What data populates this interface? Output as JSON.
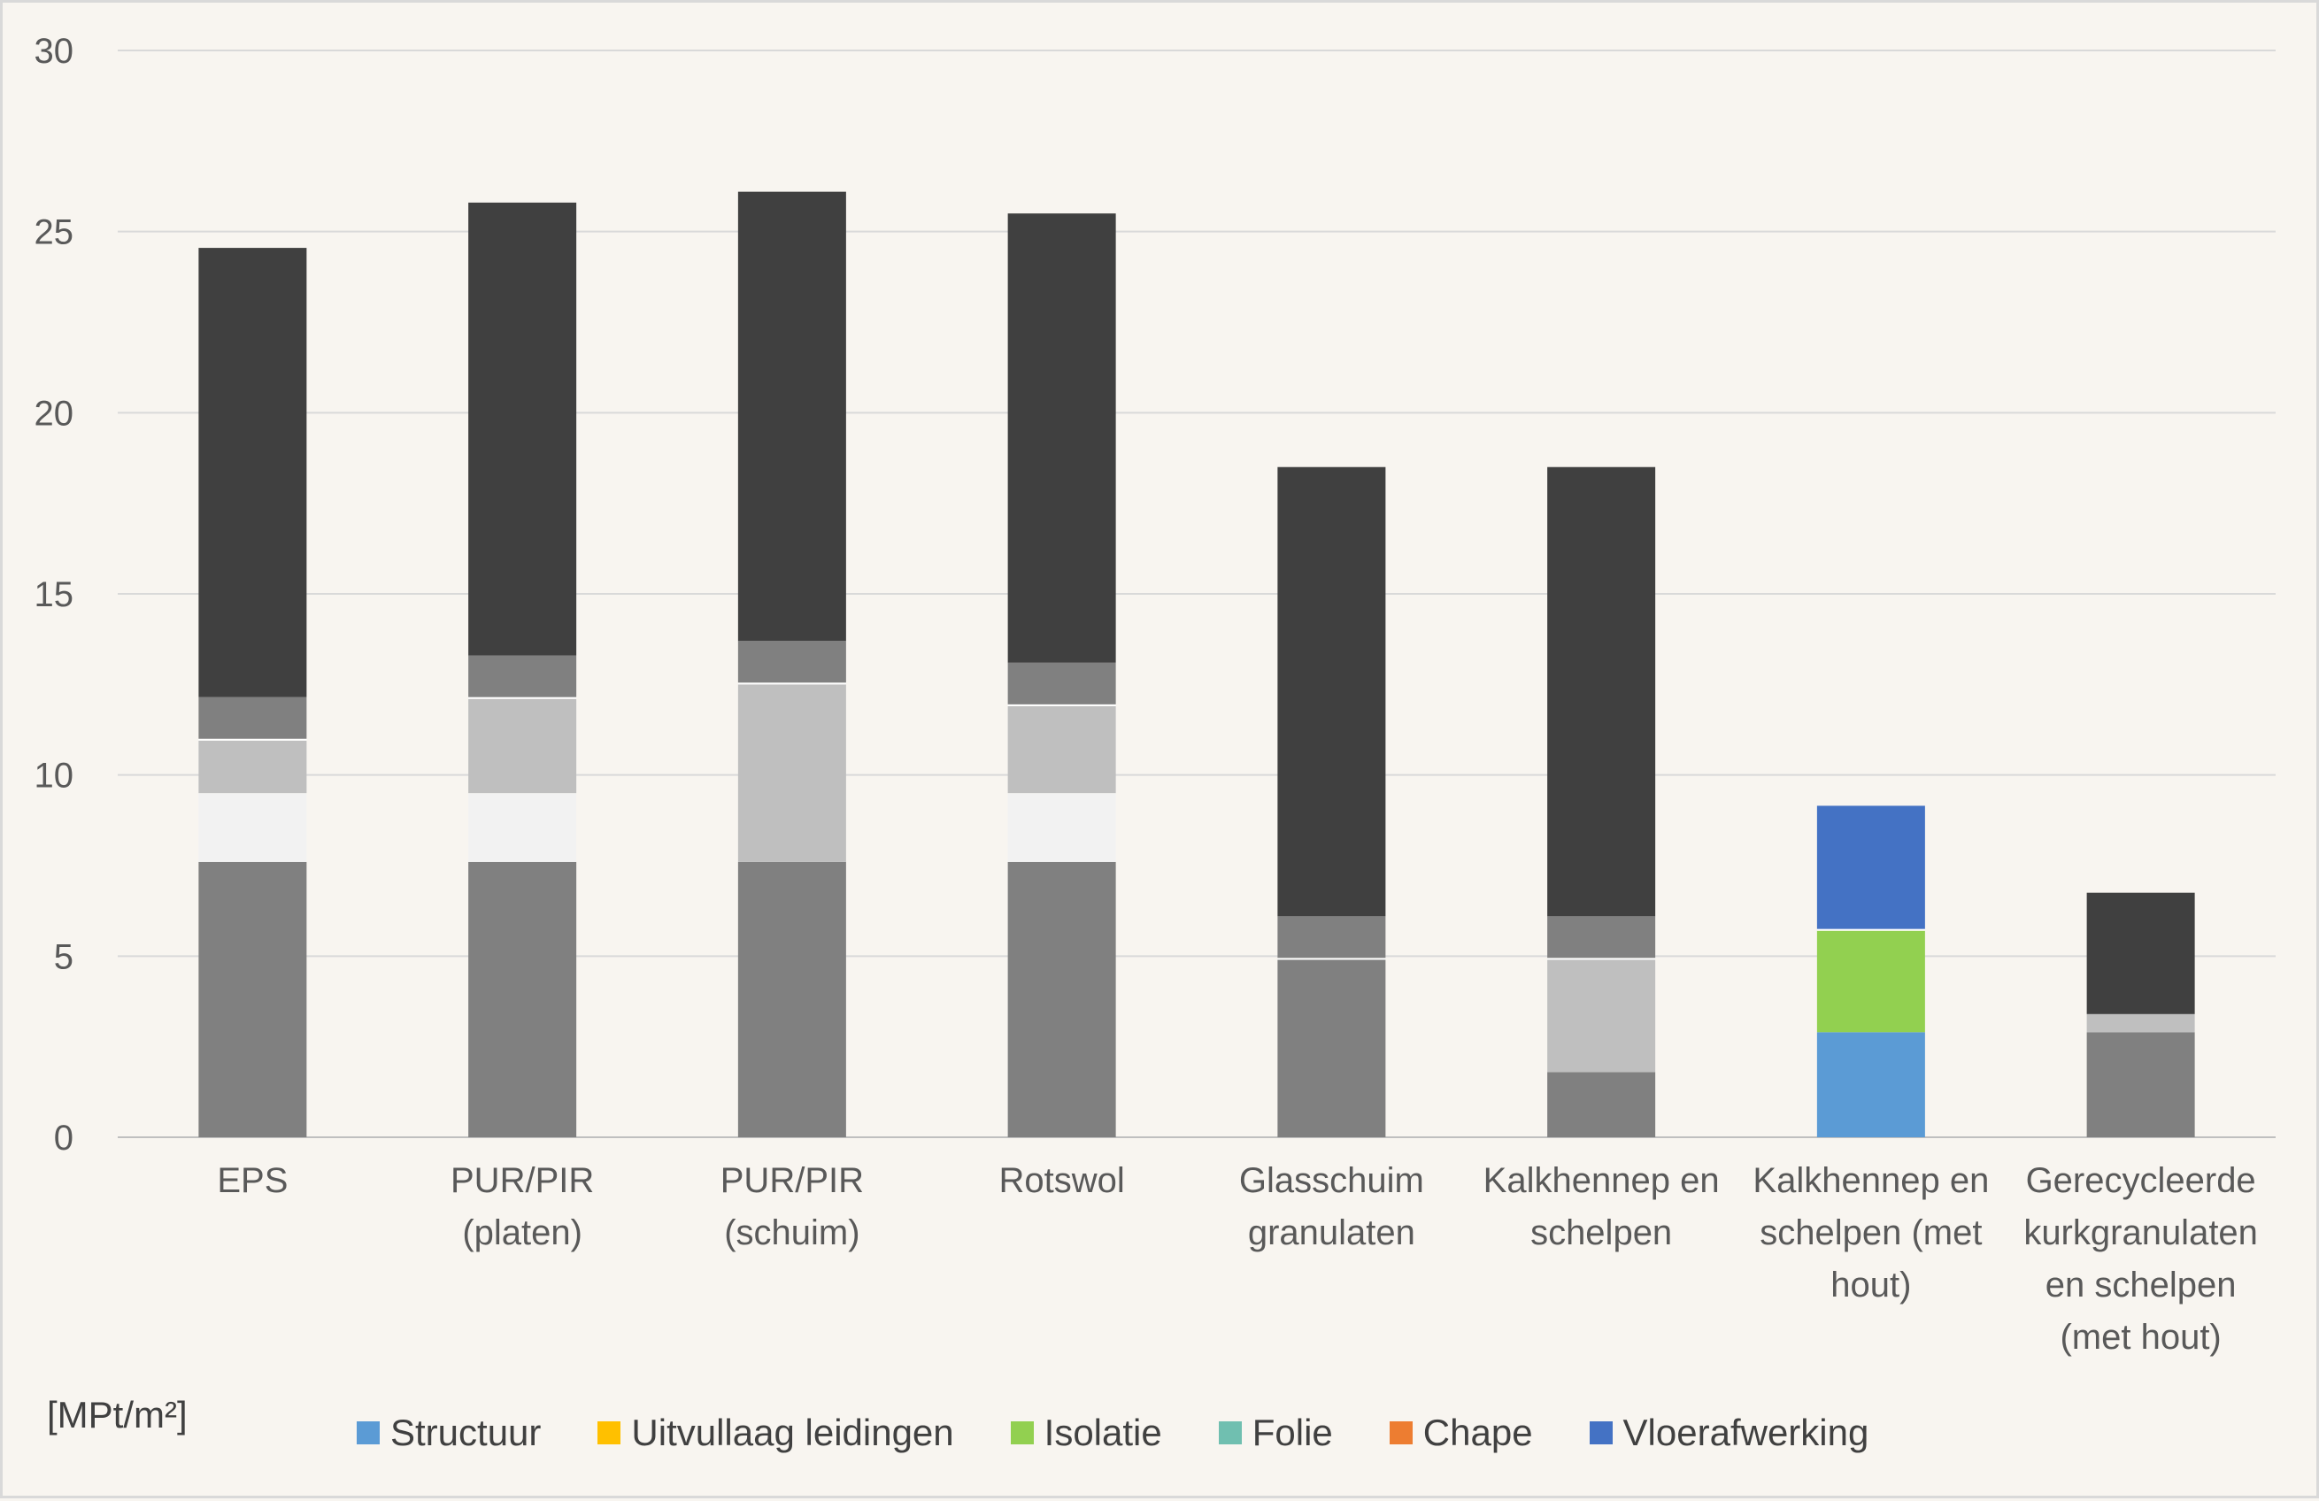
{
  "chart_data": {
    "type": "bar",
    "stacked": true,
    "ylim": [
      0,
      30
    ],
    "yticks": [
      0,
      5,
      10,
      15,
      20,
      25,
      30
    ],
    "unit_label": "[MPt/m²]",
    "grid": true,
    "legend_position": "bottom",
    "categories": [
      "EPS",
      "PUR/PIR (platen)",
      "PUR/PIR (schuim)",
      "Rotswol",
      "Glasschuim granulaten",
      "Kalkhennep en schelpen",
      "Kalkhennep en schelpen (met hout)",
      "Gerecycleerde kurkgranulaten en schelpen (met hout)"
    ],
    "category_lines": [
      [
        "EPS"
      ],
      [
        "PUR/PIR",
        "(platen)"
      ],
      [
        "PUR/PIR",
        "(schuim)"
      ],
      [
        "Rotswol"
      ],
      [
        "Glasschuim",
        "granulaten"
      ],
      [
        "Kalkhennep en",
        "schelpen"
      ],
      [
        "Kalkhennep en",
        "schelpen (met",
        "hout)"
      ],
      [
        "Gerecycleerde",
        "kurkgranulaten",
        "en schelpen",
        "(met hout)"
      ]
    ],
    "series": [
      {
        "name": "Structuur",
        "color": "#5b9bd5",
        "values": [
          7.6,
          7.6,
          7.6,
          7.6,
          4.9,
          1.8,
          2.9,
          2.9
        ]
      },
      {
        "name": "Uitvullaag leidingen",
        "color": "#ffc000",
        "values": [
          1.9,
          1.9,
          0,
          1.9,
          0,
          0,
          0,
          0
        ]
      },
      {
        "name": "Isolatie",
        "color": "#92d050",
        "values": [
          1.45,
          2.6,
          4.9,
          2.4,
          0,
          3.1,
          2.8,
          0.5
        ]
      },
      {
        "name": "Folie",
        "color": "#70bfb0",
        "values": [
          0.05,
          0.05,
          0.05,
          0.05,
          0.05,
          0.05,
          0.05,
          0
        ]
      },
      {
        "name": "Chape",
        "color": "#ed7d31",
        "values": [
          1.15,
          1.15,
          1.15,
          1.15,
          1.15,
          1.15,
          0,
          0
        ]
      },
      {
        "name": "Vloerafwerking",
        "color": "#4472c4",
        "values": [
          12.4,
          12.5,
          12.4,
          12.4,
          12.4,
          12.4,
          3.4,
          3.35
        ]
      }
    ],
    "bar_fills": [
      [
        "#808080",
        "#f2f2f2",
        "#bfbfbf",
        "#ffffff",
        "#808080",
        "#404040"
      ],
      [
        "#808080",
        "#f2f2f2",
        "#bfbfbf",
        "#ffffff",
        "#808080",
        "#404040"
      ],
      [
        "#808080",
        "#f2f2f2",
        "#bfbfbf",
        "#ffffff",
        "#808080",
        "#404040"
      ],
      [
        "#808080",
        "#f2f2f2",
        "#bfbfbf",
        "#ffffff",
        "#808080",
        "#404040"
      ],
      [
        "#808080",
        "#f2f2f2",
        "#bfbfbf",
        "#ffffff",
        "#808080",
        "#404040"
      ],
      [
        "#808080",
        "#f2f2f2",
        "#bfbfbf",
        "#ffffff",
        "#808080",
        "#404040"
      ],
      [
        "#5b9bd5",
        "#ffc000",
        "#92d050",
        "#ffffff",
        "#ed7d31",
        "#4472c4"
      ],
      [
        "#808080",
        "#f2f2f2",
        "#bfbfbf",
        "#ffffff",
        "#808080",
        "#404040"
      ]
    ]
  }
}
